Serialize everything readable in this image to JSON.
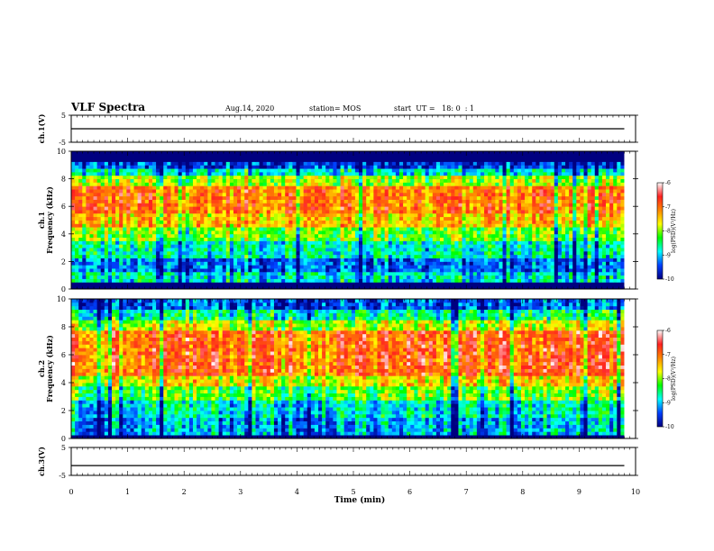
{
  "header": {
    "title": "VLF Spectra",
    "date": "Aug.14, 2020",
    "station": "station= MOS",
    "start": "start  UT =   18: 0  : 1"
  },
  "chart_data": [
    {
      "id": "ch1-voltage",
      "type": "line",
      "ylabel": "ch.1(V)",
      "ylim": [
        -5,
        5
      ],
      "yticks": [
        "5",
        "-5"
      ],
      "xlim": [
        0,
        10
      ],
      "series": [
        {
          "x": [
            0,
            9.8
          ],
          "values": [
            0,
            0
          ]
        }
      ]
    },
    {
      "id": "ch1-spectrogram",
      "type": "heatmap",
      "ylabel": "ch.1\nFrequency (kHz)",
      "ylim": [
        0,
        10
      ],
      "yticks": [
        "0",
        "2",
        "4",
        "6",
        "8",
        "10"
      ],
      "xlim": [
        0,
        10
      ],
      "colorbar": {
        "label": "log(PSD)(V²/Hz)",
        "range": [
          -10,
          -6
        ],
        "ticks": [
          "-6",
          "-7",
          "-8",
          "-9",
          "-10"
        ]
      },
      "bands_khz": [
        {
          "from": 0,
          "to": 0.4,
          "level": -10
        },
        {
          "from": 0.4,
          "to": 1.2,
          "level": -8.8
        },
        {
          "from": 1.2,
          "to": 2.2,
          "level": -9.3
        },
        {
          "from": 2.2,
          "to": 3.6,
          "level": -8.7
        },
        {
          "from": 3.6,
          "to": 4.6,
          "level": -8.1
        },
        {
          "from": 4.6,
          "to": 5.6,
          "level": -7.4
        },
        {
          "from": 5.6,
          "to": 7.6,
          "level": -7.0
        },
        {
          "from": 7.6,
          "to": 8.3,
          "level": -7.9
        },
        {
          "from": 8.3,
          "to": 8.8,
          "level": -8.8
        },
        {
          "from": 8.8,
          "to": 9.2,
          "level": -9.5
        },
        {
          "from": 9.2,
          "to": 10,
          "level": -10
        }
      ]
    },
    {
      "id": "ch2-spectrogram",
      "type": "heatmap",
      "ylabel": "ch.2\nFrequency (kHz)",
      "ylim": [
        0,
        10
      ],
      "yticks": [
        "0",
        "2",
        "4",
        "6",
        "8",
        "10"
      ],
      "xlim": [
        0,
        10
      ],
      "colorbar": {
        "label": "log(PSD)(V²/Hz)",
        "range": [
          -10,
          -6
        ],
        "ticks": [
          "-6",
          "-7",
          "-8",
          "-9",
          "-10"
        ]
      },
      "bands_khz": [
        {
          "from": 0,
          "to": 0.3,
          "level": -10
        },
        {
          "from": 0.3,
          "to": 1.5,
          "level": -9.1
        },
        {
          "from": 1.5,
          "to": 2.8,
          "level": -8.8
        },
        {
          "from": 2.8,
          "to": 3.8,
          "level": -8.2
        },
        {
          "from": 3.8,
          "to": 4.6,
          "level": -7.6
        },
        {
          "from": 4.6,
          "to": 7.8,
          "level": -6.9
        },
        {
          "from": 7.8,
          "to": 8.6,
          "level": -7.8
        },
        {
          "from": 8.6,
          "to": 9.3,
          "level": -8.6
        },
        {
          "from": 9.3,
          "to": 10,
          "level": -9.4
        }
      ]
    },
    {
      "id": "ch3-voltage",
      "type": "line",
      "ylabel": "ch.3(V)",
      "ylim": [
        -5,
        5
      ],
      "yticks": [
        "5",
        "-5"
      ],
      "xlim": [
        0,
        10
      ],
      "series": [
        {
          "x": [
            0,
            9.8
          ],
          "values": [
            -1.5,
            -1.5
          ]
        }
      ]
    }
  ],
  "xaxis": {
    "label": "Time (min)",
    "ticks": [
      "0",
      "1",
      "2",
      "3",
      "4",
      "5",
      "6",
      "7",
      "8",
      "9",
      "10"
    ]
  },
  "colors": {
    "colormap": [
      "#ffffff",
      "#ff2020",
      "#ff8800",
      "#ffff00",
      "#00ff00",
      "#00ffff",
      "#0040ff",
      "#000080"
    ]
  }
}
